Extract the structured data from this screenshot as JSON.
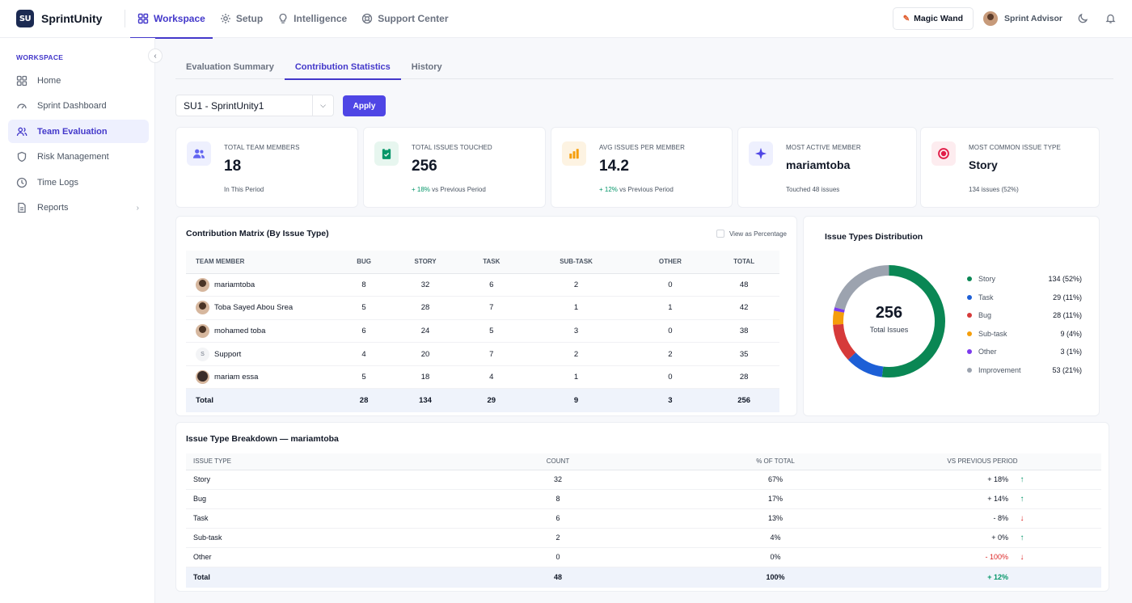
{
  "app": {
    "logo_mark": "SU",
    "name": "SprintUnity"
  },
  "topnav": [
    {
      "label": "Workspace",
      "icon": "grid-icon",
      "active": true
    },
    {
      "label": "Setup",
      "icon": "gear-icon"
    },
    {
      "label": "Intelligence",
      "icon": "lightbulb-icon"
    },
    {
      "label": "Support Center",
      "icon": "lifebuoy-icon"
    }
  ],
  "topright": {
    "magic_wand": "Magic Wand",
    "advisor": "Sprint Advisor"
  },
  "sidebar": {
    "heading": "WORKSPACE",
    "items": [
      {
        "label": "Home",
        "icon": "grid-icon"
      },
      {
        "label": "Sprint Dashboard",
        "icon": "gauge-icon"
      },
      {
        "label": "Team Evaluation",
        "icon": "users-icon",
        "active": true
      },
      {
        "label": "Risk Management",
        "icon": "shield-icon"
      },
      {
        "label": "Time Logs",
        "icon": "clock-icon"
      },
      {
        "label": "Reports",
        "icon": "document-icon"
      }
    ]
  },
  "tabs": [
    "Evaluation Summary",
    "Contribution Statistics",
    "History"
  ],
  "filter": {
    "sprint": "SU1 - SprintUnity1",
    "apply": "Apply"
  },
  "kpis": [
    {
      "label": "TOTAL TEAM MEMBERS",
      "value": "18",
      "sub_prefix": "",
      "sub": "In This Period",
      "color": "#6366f1",
      "bg": "#eef0fe"
    },
    {
      "label": "TOTAL ISSUES TOUCHED",
      "value": "256",
      "sub_prefix": "+ 18%",
      "sub": " vs Previous Period",
      "color": "#059669",
      "bg": "#e7f6ef"
    },
    {
      "label": "AVG ISSUES PER MEMBER",
      "value": "14.2",
      "sub_prefix": "+ 12%",
      "sub": " vs Previous Period",
      "color": "#f59e0b",
      "bg": "#fdf3e2"
    },
    {
      "label": "MOST ACTIVE MEMBER",
      "value": "mariamtoba",
      "sub_prefix": "",
      "sub": "Touched 48 issues",
      "color": "#4f46e5",
      "bg": "#eef0fe"
    },
    {
      "label": "MOST COMMON ISSUE TYPE",
      "value": "Story",
      "sub_prefix": "",
      "sub": "134 issues (52%)",
      "color": "#e11d48",
      "bg": "#fdecef"
    }
  ],
  "matrix": {
    "title": "Contribution Matrix (By Issue Type)",
    "view_pct": "View as Percentage",
    "headers": [
      "TEAM MEMBER",
      "BUG",
      "STORY",
      "TASK",
      "SUB-TASK",
      "OTHER",
      "TOTAL"
    ],
    "rows": [
      {
        "name": "mariamtoba",
        "avatar": "photo",
        "bug": "8",
        "story": "32",
        "task": "6",
        "subtask": "2",
        "other": "0",
        "total": "48"
      },
      {
        "name": "Toba Sayed Abou Srea",
        "avatar": "photo",
        "bug": "5",
        "story": "28",
        "task": "7",
        "subtask": "1",
        "other": "1",
        "total": "42"
      },
      {
        "name": "mohamed toba",
        "avatar": "photo",
        "bug": "6",
        "story": "24",
        "task": "5",
        "subtask": "3",
        "other": "0",
        "total": "38"
      },
      {
        "name": "Support",
        "avatar": "S",
        "bug": "4",
        "story": "20",
        "task": "7",
        "subtask": "2",
        "other": "2",
        "total": "35"
      },
      {
        "name": "mariam essa",
        "avatar": "photo",
        "bug": "5",
        "story": "18",
        "task": "4",
        "subtask": "1",
        "other": "0",
        "total": "28"
      }
    ],
    "total": {
      "name": "Total",
      "bug": "28",
      "story": "134",
      "task": "29",
      "subtask": "9",
      "other": "3",
      "total": "256"
    }
  },
  "distribution": {
    "title": "Issue Types Distribution",
    "center_value": "256",
    "center_label": "Total Issues",
    "items": [
      {
        "label": "Story",
        "value": "134 (52%)",
        "pct": 52,
        "color": "#0a8754"
      },
      {
        "label": "Task",
        "value": "29 (11%)",
        "pct": 11,
        "color": "#1d5fd6"
      },
      {
        "label": "Bug",
        "value": "28 (11%)",
        "pct": 11,
        "color": "#d63a3a"
      },
      {
        "label": "Sub-task",
        "value": "9 (4%)",
        "pct": 4,
        "color": "#f59e0b"
      },
      {
        "label": "Other",
        "value": "3 (1%)",
        "pct": 1,
        "color": "#7c3aed"
      },
      {
        "label": "Improvement",
        "value": "53 (21%)",
        "pct": 21,
        "color": "#9ca3af"
      }
    ]
  },
  "breakdown": {
    "title": "Issue Type Breakdown — mariamtoba",
    "headers": [
      "ISSUE TYPE",
      "COUNT",
      "% OF TOTAL",
      "VS PREVIOUS PERIOD"
    ],
    "rows": [
      {
        "type": "Story",
        "count": "32",
        "pct": "67%",
        "vs": "+ 18%",
        "dir": "up"
      },
      {
        "type": "Bug",
        "count": "8",
        "pct": "17%",
        "vs": "+ 14%",
        "dir": "up"
      },
      {
        "type": "Task",
        "count": "6",
        "pct": "13%",
        "vs": "- 8%",
        "dir": "down"
      },
      {
        "type": "Sub-task",
        "count": "2",
        "pct": "4%",
        "vs": "+ 0%",
        "dir": "up"
      },
      {
        "type": "Other",
        "count": "0",
        "pct": "0%",
        "vs": "- 100%",
        "dir": "down"
      }
    ],
    "total": {
      "type": "Total",
      "count": "48",
      "pct": "100%",
      "vs": "+ 12%"
    }
  }
}
